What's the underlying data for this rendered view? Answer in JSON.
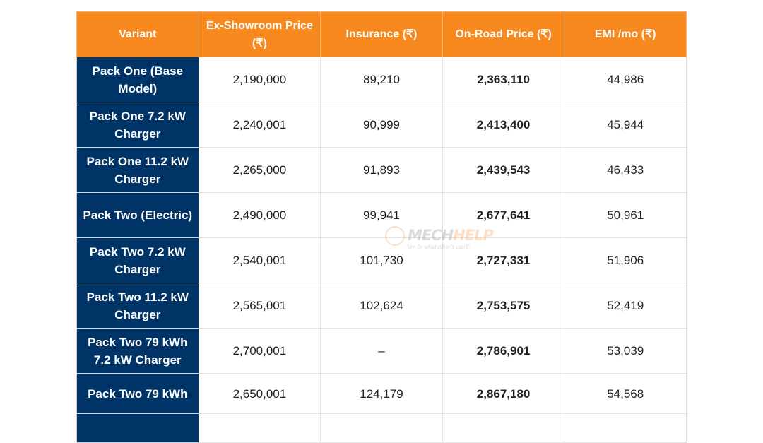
{
  "table": {
    "headers": [
      "Variant",
      "Ex-Showroom Price (₹)",
      "Insurance (₹)",
      "On-Road Price (₹)",
      "EMI /mo (₹)"
    ],
    "rows": [
      {
        "variant": "Pack One (Base Model)",
        "ex_showroom": "2,190,000",
        "insurance": "89,210",
        "on_road": "2,363,110",
        "emi": "44,986"
      },
      {
        "variant": "Pack One 7.2 kW Charger",
        "ex_showroom": "2,240,001",
        "insurance": "90,999",
        "on_road": "2,413,400",
        "emi": "45,944"
      },
      {
        "variant": "Pack One 11.2 kW Charger",
        "ex_showroom": "2,265,000",
        "insurance": "91,893",
        "on_road": "2,439,543",
        "emi": "46,433"
      },
      {
        "variant": "Pack Two (Electric)",
        "ex_showroom": "2,490,000",
        "insurance": "99,941",
        "on_road": "2,677,641",
        "emi": "50,961"
      },
      {
        "variant": "Pack Two 7.2 kW Charger",
        "ex_showroom": "2,540,001",
        "insurance": "101,730",
        "on_road": "2,727,331",
        "emi": "51,906"
      },
      {
        "variant": "Pack Two 11.2 kW Charger",
        "ex_showroom": "2,565,001",
        "insurance": "102,624",
        "on_road": "2,753,575",
        "emi": "52,419"
      },
      {
        "variant": "Pack Two 79 kWh 7.2 kW Charger",
        "ex_showroom": "2,700,001",
        "insurance": "–",
        "on_road": "2,786,901",
        "emi": "53,039"
      },
      {
        "variant": "Pack Two 79 kWh",
        "ex_showroom": "2,650,001",
        "insurance": "124,179",
        "on_road": "2,867,180",
        "emi": "54,568"
      }
    ]
  },
  "watermark": {
    "brand_part1": "MECH",
    "brand_part2": "HELP",
    "tagline": "\"we fix what other's can't\""
  },
  "colors": {
    "header_bg": "#f7891f",
    "variant_bg": "#003467"
  }
}
